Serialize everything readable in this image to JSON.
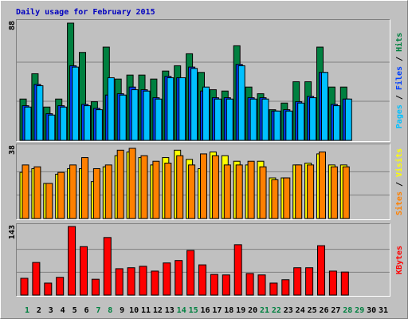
{
  "chart_data": [
    {
      "type": "bar",
      "title": "Daily usage for February 2015",
      "legend_separator": " / ",
      "ylim": [
        0,
        88
      ],
      "yticks": [
        88
      ],
      "grid": true,
      "series": [
        {
          "name": "Hits",
          "color": "#008040",
          "values": [
            31,
            50,
            25,
            31,
            88,
            66,
            29,
            70,
            46,
            49,
            49,
            46,
            52,
            56,
            65,
            51,
            38,
            37,
            71,
            40,
            35,
            23,
            28,
            44,
            44,
            70,
            40,
            40,
            null,
            null,
            null
          ]
        },
        {
          "name": "Files",
          "color": "#0040ff",
          "values": [
            26,
            42,
            20,
            26,
            56,
            27,
            24,
            34,
            35,
            40,
            38,
            32,
            48,
            47,
            55,
            37,
            32,
            32,
            57,
            32,
            32,
            22,
            23,
            29,
            33,
            51,
            27,
            31,
            null,
            null,
            null
          ]
        },
        {
          "name": "Pages",
          "color": "#00c0ff",
          "values": [
            25,
            41,
            19,
            25,
            55,
            26,
            23,
            47,
            34,
            38,
            37,
            31,
            47,
            47,
            54,
            40,
            31,
            31,
            56,
            31,
            31,
            22,
            22,
            28,
            32,
            51,
            26,
            31,
            null,
            null,
            null
          ]
        }
      ]
    },
    {
      "type": "bar",
      "legend_separator": " / ",
      "ylim": [
        0,
        38
      ],
      "yticks": [
        38
      ],
      "grid": true,
      "series": [
        {
          "name": "Visits",
          "color": "#ffff00",
          "values": [
            25,
            27,
            19,
            24,
            27,
            27,
            20,
            28,
            34,
            36,
            33,
            29,
            33,
            37,
            32,
            27,
            36,
            34,
            31,
            29,
            31,
            22,
            22,
            29,
            30,
            35,
            29,
            29,
            null,
            null,
            null
          ]
        },
        {
          "name": "Sites",
          "color": "#ff8000",
          "values": [
            29,
            28,
            19,
            25,
            29,
            33,
            27,
            29,
            37,
            38,
            34,
            31,
            30,
            34,
            29,
            35,
            34,
            29,
            29,
            31,
            28,
            21,
            22,
            29,
            29,
            36,
            28,
            28,
            null,
            null,
            null
          ]
        }
      ]
    },
    {
      "type": "bar",
      "ylim": [
        0,
        143
      ],
      "yticks": [
        143
      ],
      "grid": true,
      "series": [
        {
          "name": "KBytes",
          "color": "#ff0000",
          "values": [
            35,
            68,
            25,
            37,
            143,
            101,
            33,
            120,
            55,
            57,
            60,
            50,
            67,
            72,
            93,
            63,
            43,
            42,
            105,
            45,
            42,
            25,
            32,
            57,
            57,
            103,
            50,
            48,
            null,
            null,
            null
          ]
        }
      ],
      "categories": [
        "1",
        "2",
        "3",
        "4",
        "5",
        "6",
        "7",
        "8",
        "9",
        "10",
        "11",
        "12",
        "13",
        "14",
        "15",
        "16",
        "17",
        "18",
        "19",
        "20",
        "21",
        "22",
        "23",
        "24",
        "25",
        "26",
        "27",
        "28",
        "29",
        "30",
        "31"
      ],
      "category_colors": [
        "#008040",
        "#000000",
        "#000000",
        "#000000",
        "#000000",
        "#000000",
        "#008040",
        "#008040",
        "#000000",
        "#000000",
        "#000000",
        "#000000",
        "#000000",
        "#008040",
        "#008040",
        "#000000",
        "#000000",
        "#000000",
        "#000000",
        "#000000",
        "#008040",
        "#008040",
        "#000000",
        "#000000",
        "#000000",
        "#000000",
        "#000000",
        "#008040",
        "#008040",
        "#000000",
        "#000000"
      ]
    }
  ]
}
